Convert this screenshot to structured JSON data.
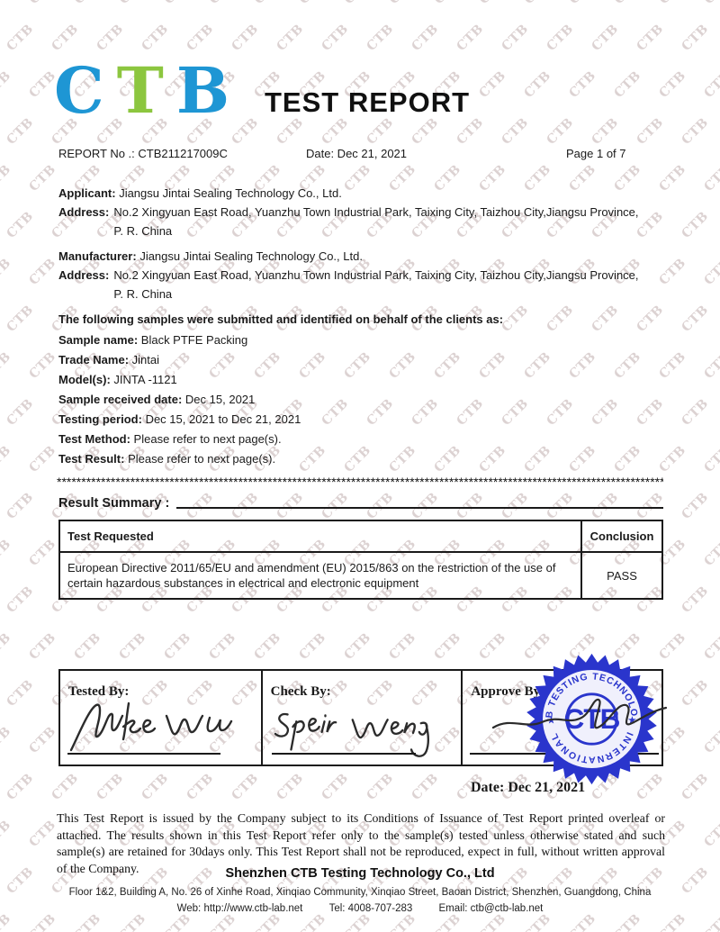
{
  "colors": {
    "logo_blue": "#1e96d4",
    "logo_green": "#8cc63f",
    "stamp_blue": "#2a35cc",
    "watermark_gray": "#dcd2d2"
  },
  "watermark": {
    "text": "CTB"
  },
  "logo": {
    "c": "C",
    "t": "T",
    "b": "B"
  },
  "title": "TEST REPORT",
  "meta": {
    "report_no": "REPORT No .: CTB211217009C",
    "date": "Date: Dec 21, 2021",
    "page": "Page 1 of 7"
  },
  "applicant": {
    "label": "Applicant:",
    "value": "Jiangsu Jintai Sealing Technology Co., Ltd.",
    "address_label": "Address:",
    "address": "No.2 Xingyuan East Road, Yuanzhu Town Industrial Park, Taixing City, Taizhou City,Jiangsu Province,\nP. R. China"
  },
  "manufacturer": {
    "label": "Manufacturer:",
    "value": "Jiangsu Jintai Sealing Technology Co., Ltd.",
    "address_label": "Address:",
    "address": "No.2 Xingyuan East Road, Yuanzhu Town Industrial Park, Taixing City, Taizhou City,Jiangsu Province,\nP. R. China"
  },
  "samples": {
    "intro": "The following samples were submitted and identified on behalf of the clients as:",
    "fields": [
      {
        "label": "Sample name:",
        "value": "Black PTFE Packing"
      },
      {
        "label": "Trade Name:",
        "value": "Jintai"
      },
      {
        "label": "Model(s):",
        "value": "JINTA -1121"
      },
      {
        "label": "Sample received date:",
        "value": "Dec 15, 2021"
      },
      {
        "label": "Testing period:",
        "value": "Dec 15, 2021 to Dec 21, 2021"
      },
      {
        "label": "Test Method:",
        "value": "Please refer to next page(s)."
      },
      {
        "label": "Test Result:",
        "value": "Please refer to next page(s)."
      }
    ]
  },
  "separator": "**********************************************************************************************************************************************************************",
  "result_summary": {
    "heading": "Result Summary :",
    "table": {
      "col_test": "Test Requested",
      "col_conclusion": "Conclusion",
      "row_test": "European Directive 2011/65/EU and amendment (EU) 2015/863 on the restriction of the use of certain hazardous substances in electrical and electronic equipment",
      "row_conclusion": "PASS"
    }
  },
  "signatures": {
    "tested_label": "Tested By:",
    "check_label": "Check By:",
    "approve_label": "Approve By:",
    "date": "Date: Dec 21, 2021"
  },
  "stamp": {
    "top_text": "CTB TESTING TECHNOLOGY",
    "bottom_text": "INTERNATIONAL",
    "center_text": "CTB",
    "star": "★"
  },
  "footer": {
    "disclaimer": "This Test Report is issued by the Company subject to its Conditions of Issuance of Test Report printed overleaf or attached. The results shown in this Test Report refer only to the sample(s) tested unless otherwise stated and such sample(s) are retained for 30days only. This Test Report shall not be reproduced, expect in full, without written approval of the Company.",
    "company": "Shenzhen CTB Testing Technology Co., Ltd",
    "address": "Floor 1&2, Building A, No. 26 of Xinhe Road, Xinqiao Community, Xinqiao Street, Baoan District, Shenzhen, Guangdong, China",
    "web": "Web: http://www.ctb-lab.net",
    "tel": "Tel: 4008-707-283",
    "email": "Email: ctb@ctb-lab.net"
  }
}
